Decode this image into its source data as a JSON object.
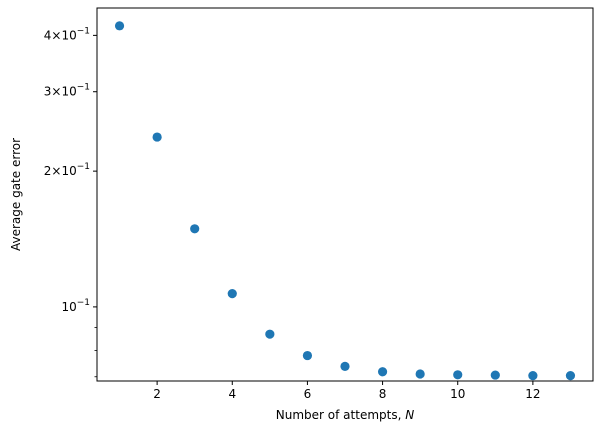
{
  "chart_data": {
    "type": "scatter",
    "xlabel": "Number of attempts, ",
    "xlabel_var": "N",
    "ylabel": "Average gate error",
    "yscale": "log",
    "xlim": [
      0.4,
      13.6
    ],
    "ylim": [
      0.0685,
      0.46
    ],
    "grid": false,
    "marker_color": "#1f77b4",
    "x_major_ticks": [
      2,
      4,
      6,
      8,
      10,
      12
    ],
    "x_tick_labels": [
      "2",
      "4",
      "6",
      "8",
      "10",
      "12"
    ],
    "y_major_ticks": [
      0.1,
      0.2,
      0.3,
      0.4
    ],
    "y_tick_labels": [
      {
        "mantissa": "",
        "base": "10",
        "exp": "−1"
      },
      {
        "mantissa": "2×",
        "base": "10",
        "exp": "−1"
      },
      {
        "mantissa": "3×",
        "base": "10",
        "exp": "−1"
      },
      {
        "mantissa": "4×",
        "base": "10",
        "exp": "−1"
      }
    ],
    "y_minor_ticks": [
      0.07,
      0.08,
      0.09
    ],
    "x": [
      1,
      2,
      3,
      4,
      5,
      6,
      7,
      8,
      9,
      10,
      11,
      12,
      13
    ],
    "y": [
      0.42,
      0.238,
      0.149,
      0.107,
      0.087,
      0.078,
      0.0738,
      0.0718,
      0.071,
      0.0707,
      0.0706,
      0.0704,
      0.0704
    ]
  }
}
